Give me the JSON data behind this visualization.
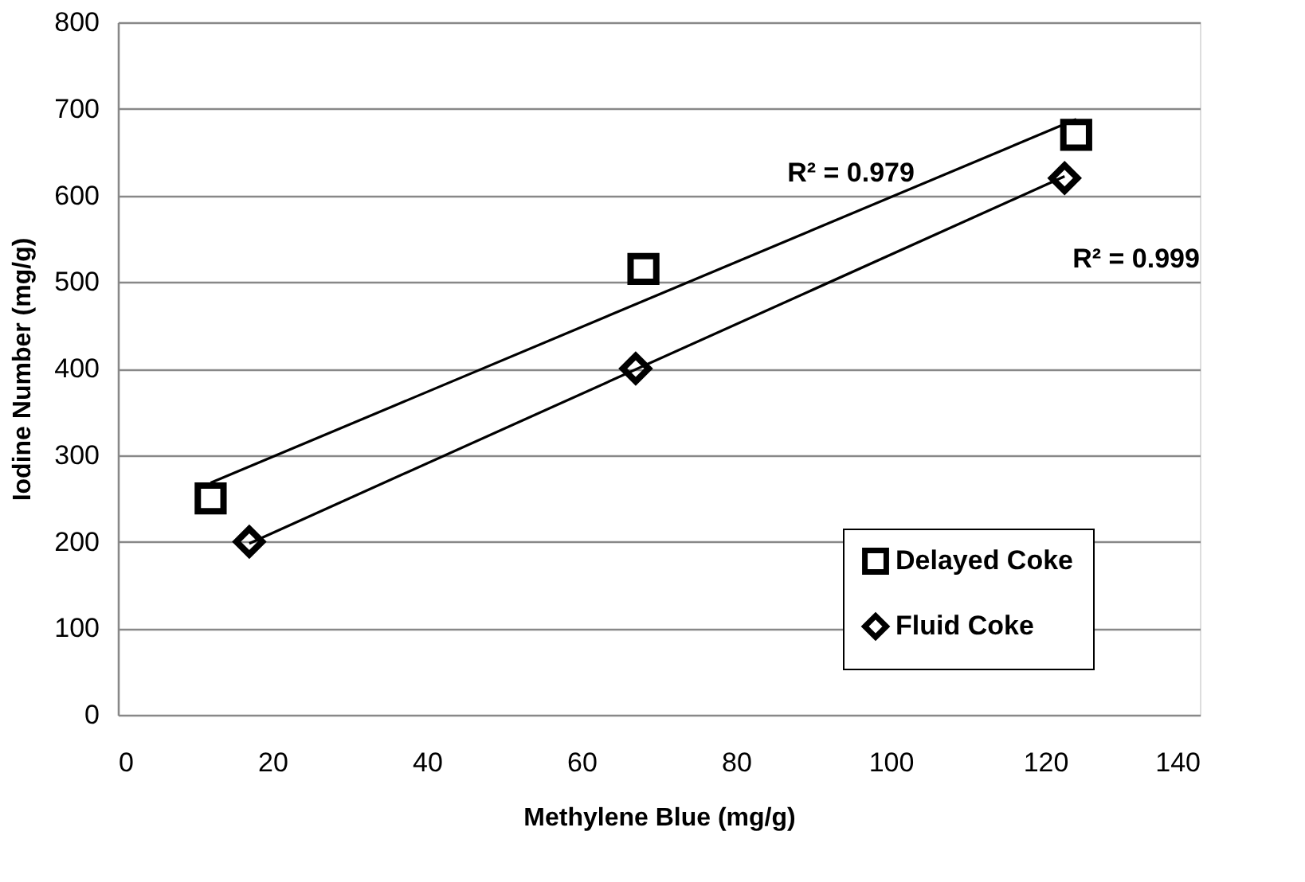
{
  "chart_data": {
    "type": "scatter",
    "xlabel": "Methylene Blue (mg/g)",
    "ylabel": "Iodine Number (mg/g)",
    "xlim": [
      0,
      140
    ],
    "xticks": [
      0,
      20,
      40,
      60,
      80,
      100,
      120,
      140
    ],
    "ylim": [
      0,
      800
    ],
    "yticks": [
      0,
      100,
      200,
      300,
      400,
      500,
      600,
      700,
      800
    ],
    "grid": "y",
    "legend": "bottom right",
    "series": [
      {
        "name": "Delayed Coke",
        "marker": "square",
        "color": "#000000",
        "x": [
          12,
          68,
          124
        ],
        "values": [
          250,
          515,
          670
        ]
      },
      {
        "name": "Fluid Coke",
        "marker": "diamond",
        "color": "#000000",
        "x": [
          17,
          67,
          122.5
        ],
        "values": [
          200,
          400,
          620
        ]
      },
      {
        "type": "line",
        "color": "#000000",
        "x": [
          12,
          124
        ],
        "values": [
          268,
          688
        ]
      },
      {
        "type": "line",
        "color": "#000000",
        "x": [
          17,
          122.5
        ],
        "values": [
          198,
          622
        ]
      }
    ],
    "annotations": [
      "R² = 0.979",
      "R² = 0.999"
    ]
  }
}
